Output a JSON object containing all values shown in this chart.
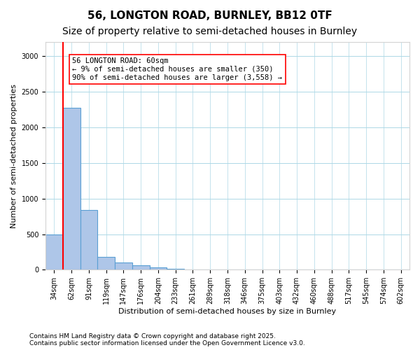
{
  "title1": "56, LONGTON ROAD, BURNLEY, BB12 0TF",
  "title2": "Size of property relative to semi-detached houses in Burnley",
  "xlabel": "Distribution of semi-detached houses by size in Burnley",
  "ylabel": "Number of semi-detached properties",
  "bins": [
    "34sqm",
    "62sqm",
    "91sqm",
    "119sqm",
    "147sqm",
    "176sqm",
    "204sqm",
    "233sqm",
    "261sqm",
    "289sqm",
    "318sqm",
    "346sqm",
    "375sqm",
    "403sqm",
    "432sqm",
    "460sqm",
    "488sqm",
    "517sqm",
    "545sqm",
    "574sqm",
    "602sqm"
  ],
  "values": [
    500,
    2280,
    840,
    185,
    105,
    60,
    30,
    10,
    5,
    3,
    2,
    1,
    1,
    1,
    0,
    0,
    0,
    0,
    0,
    0,
    0
  ],
  "bar_color": "#aec6e8",
  "bar_edge_color": "#5a9fd4",
  "annotation_text": "56 LONGTON ROAD: 60sqm\n← 9% of semi-detached houses are smaller (350)\n90% of semi-detached houses are larger (3,558) →",
  "annotation_box_color": "white",
  "annotation_box_edge_color": "red",
  "vline_color": "red",
  "footer1": "Contains HM Land Registry data © Crown copyright and database right 2025.",
  "footer2": "Contains public sector information licensed under the Open Government Licence v3.0.",
  "ylim": [
    0,
    3200
  ],
  "yticks": [
    0,
    500,
    1000,
    1500,
    2000,
    2500,
    3000
  ],
  "title1_fontsize": 11,
  "title2_fontsize": 10,
  "axis_label_fontsize": 8,
  "tick_fontsize": 7,
  "footer_fontsize": 6.5,
  "annotation_fontsize": 7.5,
  "vline_x": 0.5
}
